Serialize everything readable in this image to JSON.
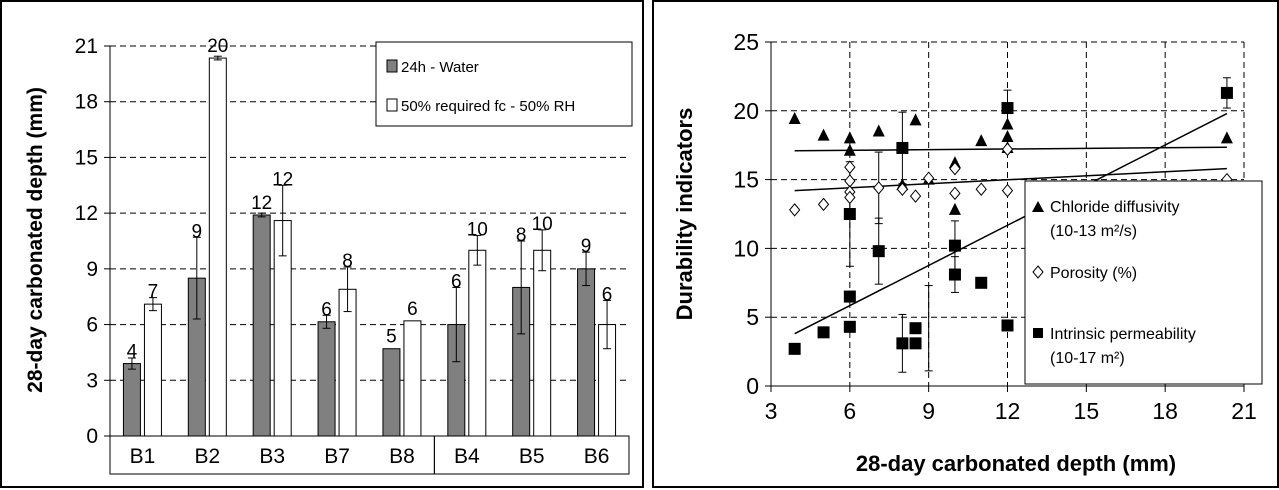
{
  "chart_data": [
    {
      "type": "bar",
      "title": "",
      "xlabel": "",
      "ylabel": "28-day carbonated depth (mm)",
      "ylim": [
        0,
        21
      ],
      "yticks": [
        0,
        3,
        6,
        9,
        12,
        15,
        18,
        21
      ],
      "grid": "horizontal dashed",
      "legend_position": "top-right",
      "categories": [
        "B1",
        "B2",
        "B3",
        "B7",
        "B8",
        "B4",
        "B5",
        "B6"
      ],
      "category_groups": [
        [
          "B1",
          "B2",
          "B3",
          "B7",
          "B8"
        ],
        [
          "B4",
          "B5",
          "B6"
        ]
      ],
      "series": [
        {
          "name": "24h - Water",
          "color": "#808080",
          "values": [
            3.9,
            8.5,
            11.9,
            6.15,
            4.7,
            6.0,
            8.0,
            9.0
          ],
          "errors": [
            0.3,
            2.2,
            0.1,
            0.35,
            null,
            2.0,
            2.5,
            0.9
          ],
          "labels": [
            "4",
            "9",
            "12",
            "6",
            "5",
            "6",
            "8",
            "9"
          ]
        },
        {
          "name": "50% required fc - 50% RH",
          "color": "#ffffff",
          "values": [
            7.1,
            20.35,
            11.6,
            7.9,
            6.2,
            10.0,
            10.0,
            6.0
          ],
          "errors": [
            0.35,
            0.1,
            1.9,
            1.2,
            null,
            0.8,
            1.1,
            1.3
          ],
          "labels": [
            "7",
            "20",
            "12",
            "8",
            "6",
            "10",
            "10",
            "6"
          ]
        }
      ]
    },
    {
      "type": "scatter",
      "title": "",
      "xlabel": "28-day carbonated depth (mm)",
      "ylabel": "Durability indicators",
      "xlim": [
        3,
        21
      ],
      "ylim": [
        0,
        25
      ],
      "xticks": [
        3,
        6,
        9,
        12,
        15,
        18,
        21
      ],
      "yticks": [
        0,
        5,
        10,
        15,
        20,
        25
      ],
      "grid": "dashed both axes",
      "legend_position": "bottom-right",
      "series": [
        {
          "name": "Chloride diffusivity",
          "name_line2": "(10-13 m²/s)",
          "marker": "triangle",
          "x": [
            3.9,
            5.0,
            6.0,
            6.0,
            7.1,
            8.0,
            8.5,
            9.0,
            10.0,
            10.0,
            11.0,
            12.0,
            12.0,
            12.0,
            20.35
          ],
          "y": [
            19.4,
            18.2,
            18.0,
            17.1,
            18.5,
            14.6,
            19.3,
            15.0,
            16.2,
            12.8,
            17.8,
            19.0,
            18.1,
            17.3,
            18.0
          ],
          "trend": {
            "x": [
              3.9,
              20.35
            ],
            "y": [
              17.1,
              17.35
            ]
          }
        },
        {
          "name": "Porosity (%)",
          "marker": "open-diamond",
          "x": [
            3.9,
            5.0,
            6.0,
            6.0,
            6.0,
            6.0,
            7.1,
            8.0,
            8.5,
            9.0,
            10.0,
            10.0,
            11.0,
            12.0,
            12.0,
            20.35
          ],
          "y": [
            12.8,
            13.2,
            15.9,
            14.9,
            14.1,
            13.7,
            14.4,
            14.3,
            13.8,
            15.1,
            15.8,
            14.0,
            14.3,
            17.2,
            14.2,
            15.0
          ],
          "trend": {
            "x": [
              3.9,
              20.35
            ],
            "y": [
              14.2,
              15.8
            ]
          }
        },
        {
          "name": "Intrinsic permeability",
          "name_line2": "(10-17 m²)",
          "marker": "filled-square",
          "x": [
            3.9,
            5.0,
            6.0,
            6.0,
            6.0,
            7.1,
            8.0,
            8.0,
            8.5,
            8.5,
            10.0,
            10.0,
            11.0,
            12.0,
            12.0,
            20.35
          ],
          "y": [
            2.7,
            3.9,
            12.5,
            6.5,
            4.3,
            9.8,
            17.3,
            3.1,
            3.1,
            4.2,
            10.2,
            8.1,
            7.5,
            20.2,
            4.4,
            21.3
          ],
          "trend": {
            "x": [
              3.9,
              20.35
            ],
            "y": [
              3.8,
              19.8
            ]
          }
        }
      ]
    }
  ]
}
